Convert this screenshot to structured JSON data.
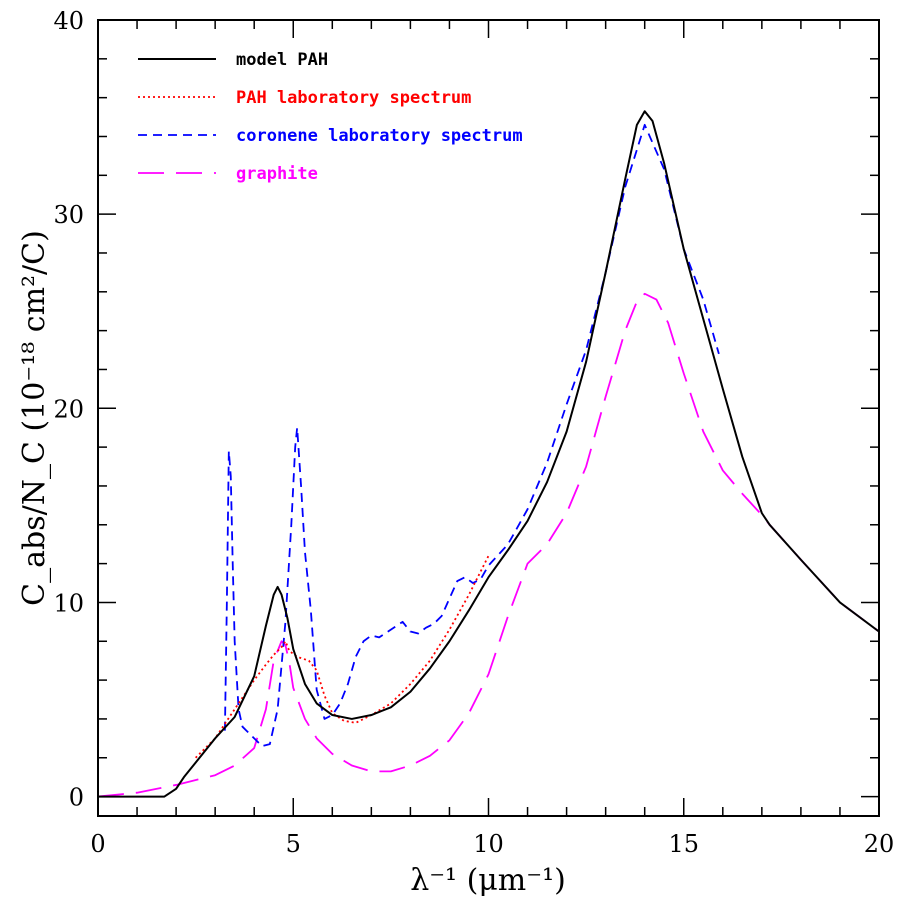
{
  "chart_data": {
    "type": "line",
    "title": "",
    "xlabel": "λ⁻¹   (μm⁻¹)",
    "ylabel": "C_abs/N_C   (10⁻¹⁸ cm²/C)",
    "xlim": [
      0,
      20
    ],
    "ylim": [
      -1,
      40
    ],
    "x_ticks": [
      "0",
      "5",
      "10",
      "15",
      "20"
    ],
    "y_ticks": [
      "0",
      "10",
      "20",
      "30",
      "40"
    ],
    "legend_position": "top-left",
    "series": [
      {
        "name": "model PAH",
        "color": "#000000",
        "dash": "solid",
        "x": [
          0,
          1.7,
          2.0,
          2.2,
          2.6,
          3.0,
          3.5,
          4.0,
          4.3,
          4.5,
          4.6,
          4.7,
          4.85,
          5.0,
          5.3,
          5.6,
          6.0,
          6.5,
          7.0,
          7.5,
          8.0,
          8.5,
          9.0,
          9.5,
          10.0,
          10.5,
          11.0,
          11.5,
          12.0,
          12.5,
          13.0,
          13.5,
          13.8,
          14.0,
          14.2,
          14.5,
          15.0,
          15.5,
          16.0,
          16.5,
          17.0,
          17.2,
          18.0,
          19.0,
          20.0
        ],
        "y": [
          0,
          0,
          0.4,
          1.0,
          2.0,
          3.0,
          4.1,
          6.2,
          8.8,
          10.4,
          10.8,
          10.4,
          9.2,
          7.6,
          5.8,
          4.8,
          4.2,
          4.0,
          4.2,
          4.6,
          5.4,
          6.6,
          8.0,
          9.6,
          11.3,
          12.7,
          14.2,
          16.2,
          18.8,
          22.4,
          27.0,
          31.8,
          34.6,
          35.3,
          34.8,
          32.6,
          28.2,
          24.6,
          21.0,
          17.5,
          14.6,
          14.0,
          12.2,
          10.0,
          8.5
        ]
      },
      {
        "name": "PAH laboratory spectrum",
        "color": "#ff0000",
        "dash": "dotted",
        "x": [
          2.5,
          3.0,
          3.5,
          4.0,
          4.3,
          4.5,
          4.7,
          4.8,
          4.9,
          5.1,
          5.4,
          5.6,
          5.8,
          6.0,
          6.3,
          6.6,
          7.0,
          7.5,
          8.0,
          8.5,
          9.0,
          9.5,
          10.0
        ],
        "y": [
          2.0,
          3.0,
          4.5,
          6.0,
          6.8,
          7.3,
          7.7,
          8.0,
          7.5,
          7.2,
          7.0,
          6.5,
          5.2,
          4.3,
          3.9,
          3.8,
          4.2,
          4.8,
          5.8,
          7.0,
          8.6,
          10.4,
          12.4
        ]
      },
      {
        "name": "coronene laboratory spectrum",
        "color": "#0000ff",
        "dash": "short-dash",
        "x": [
          3.25,
          3.3,
          3.35,
          3.4,
          3.45,
          3.5,
          3.6,
          3.7,
          3.8,
          4.0,
          4.2,
          4.4,
          4.6,
          4.8,
          4.95,
          5.05,
          5.1,
          5.2,
          5.3,
          5.45,
          5.6,
          5.8,
          6.0,
          6.2,
          6.4,
          6.6,
          6.8,
          7.0,
          7.2,
          7.5,
          7.8,
          8.0,
          8.2,
          8.4,
          8.6,
          8.8,
          9.0,
          9.2,
          9.4,
          9.6,
          9.8,
          10.0,
          10.5,
          11.0,
          11.5,
          12.0,
          12.5,
          13.0,
          13.5,
          14.0,
          14.5,
          15.0,
          15.5,
          15.9
        ],
        "y": [
          3.4,
          10.0,
          17.8,
          16.5,
          12.0,
          8.0,
          4.5,
          3.6,
          3.4,
          3.0,
          2.6,
          2.7,
          4.5,
          9.0,
          14.0,
          18.0,
          19.0,
          16.0,
          12.6,
          9.6,
          5.5,
          4.0,
          4.2,
          4.8,
          5.8,
          7.2,
          8.0,
          8.3,
          8.2,
          8.6,
          9.0,
          8.5,
          8.4,
          8.7,
          8.9,
          9.3,
          10.2,
          11.1,
          11.3,
          11.0,
          11.2,
          11.9,
          13.0,
          14.8,
          17.2,
          20.2,
          23.0,
          27.0,
          31.4,
          34.6,
          32.3,
          28.2,
          25.6,
          22.8
        ]
      },
      {
        "name": "graphite",
        "color": "#ff00ff",
        "dash": "long-dash",
        "x": [
          0,
          1.0,
          2.0,
          3.0,
          3.5,
          4.0,
          4.3,
          4.5,
          4.7,
          4.8,
          4.9,
          5.0,
          5.3,
          5.6,
          6.0,
          6.5,
          7.0,
          7.5,
          8.0,
          8.5,
          9.0,
          9.5,
          10.0,
          10.5,
          11.0,
          11.5,
          12.0,
          12.5,
          13.0,
          13.5,
          13.8,
          14.0,
          14.3,
          14.6,
          15.0,
          15.5,
          16.0,
          16.5,
          17.0,
          17.2,
          18.0,
          19.0,
          20.0
        ],
        "y": [
          0,
          0.2,
          0.6,
          1.1,
          1.6,
          2.5,
          4.5,
          7.0,
          8.0,
          7.8,
          6.9,
          5.6,
          4.0,
          3.0,
          2.2,
          1.6,
          1.3,
          1.3,
          1.6,
          2.1,
          2.9,
          4.3,
          6.3,
          9.3,
          12.0,
          13.0,
          14.6,
          17.0,
          20.6,
          24.0,
          25.5,
          25.9,
          25.6,
          24.4,
          21.8,
          18.8,
          16.8,
          15.6,
          14.5,
          14.0,
          12.2,
          10.0,
          8.5
        ]
      }
    ]
  }
}
